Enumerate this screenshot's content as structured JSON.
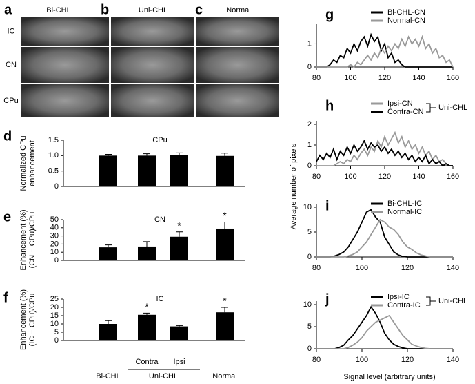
{
  "images": {
    "panel_letters": [
      "a",
      "b",
      "c"
    ],
    "columns": [
      "Bi-CHL",
      "Uni-CHL",
      "Normal"
    ],
    "rows": [
      "IC",
      "CN",
      "CPu"
    ]
  },
  "figure": {
    "shared_ylabel": "Average number of pixels",
    "shared_xlabel": "Signal level (arbitrary units)"
  },
  "chart_data": [
    {
      "type": "bar",
      "label": "d",
      "title": "CPu",
      "ylabel": [
        "Normalized CPu",
        "enhancement"
      ],
      "color": "#000000",
      "values": [
        1.0,
        1.0,
        1.02,
        0.99
      ],
      "errors": [
        0.04,
        0.06,
        0.07,
        0.09
      ],
      "ylim": [
        0,
        1.5
      ],
      "yticks": [
        0,
        0.5,
        {
          "value": 1,
          "label": "1.0"
        },
        1.5
      ]
    },
    {
      "type": "bar",
      "label": "e",
      "title": "CN",
      "ylabel": [
        "Enhancement (%)",
        "(CN − CPu)/CPu"
      ],
      "color": "#000000",
      "values": [
        16,
        17,
        29,
        39
      ],
      "errors": [
        3,
        6,
        6,
        8
      ],
      "annotations": [
        {
          "index": 2,
          "text": "*"
        },
        {
          "index": 3,
          "text": "*"
        }
      ],
      "ylim": [
        0,
        50
      ],
      "yticks": [
        0,
        10,
        20,
        30,
        40,
        50
      ]
    },
    {
      "type": "bar",
      "label": "f",
      "title": "IC",
      "ylabel": [
        "Enhancement (%)",
        "(IC − CPu)/CPu"
      ],
      "color": "#000000",
      "categories": [
        "Bi-CHL",
        "Contra",
        "Ipsi",
        "Normal"
      ],
      "group_label": "Uni-CHL",
      "values": [
        10,
        15.5,
        8.5,
        17
      ],
      "errors": [
        2,
        1,
        0.5,
        3
      ],
      "annotations": [
        {
          "index": 1,
          "text": "*"
        },
        {
          "index": 3,
          "text": "*"
        }
      ],
      "ylim": [
        0,
        25
      ],
      "yticks": [
        0,
        5,
        10,
        15,
        20,
        25
      ]
    },
    {
      "type": "line",
      "label": "g",
      "xlim": [
        80,
        160
      ],
      "xticks": [
        80,
        100,
        120,
        140,
        160
      ],
      "ylim": [
        0,
        1.7
      ],
      "yticks": [
        0,
        1
      ],
      "x": [
        80,
        82,
        84,
        86,
        88,
        90,
        92,
        94,
        96,
        98,
        100,
        102,
        104,
        106,
        108,
        110,
        112,
        114,
        116,
        118,
        120,
        122,
        124,
        126,
        128,
        130,
        132,
        134,
        136,
        138,
        140,
        142,
        144,
        146,
        148,
        150,
        152,
        154,
        156,
        158,
        160
      ],
      "series": [
        {
          "name": "Bi-CHL-CN",
          "color": "#000000",
          "values": [
            0,
            0,
            0,
            0,
            0.1,
            0.3,
            0.2,
            0.5,
            0.4,
            0.8,
            0.6,
            1.0,
            0.7,
            1.1,
            1.3,
            0.9,
            1.4,
            1.1,
            1.3,
            0.7,
            1.0,
            0.4,
            0.6,
            0.2,
            0.3,
            0.1,
            0,
            0,
            0,
            0,
            0,
            0,
            0,
            0,
            0,
            0,
            0,
            0,
            0,
            0,
            0
          ]
        },
        {
          "name": "Normal-CN",
          "color": "#999999",
          "values": [
            0,
            0,
            0,
            0,
            0,
            0,
            0,
            0,
            0,
            0,
            0.1,
            0,
            0.2,
            0.1,
            0.3,
            0.5,
            0.3,
            0.6,
            0.4,
            0.8,
            0.6,
            0.9,
            0.7,
            1.0,
            0.8,
            1.2,
            0.9,
            1.3,
            1.0,
            1.2,
            0.9,
            1.3,
            0.8,
            1.0,
            0.6,
            0.8,
            0.4,
            0.5,
            0.2,
            0.3,
            0
          ]
        }
      ]
    },
    {
      "type": "line",
      "label": "h",
      "legend_group": "Uni-CHL",
      "xlim": [
        80,
        160
      ],
      "xticks": [
        80,
        100,
        120,
        140,
        160
      ],
      "ylim": [
        0,
        2
      ],
      "yticks": [
        0,
        1,
        2
      ],
      "x": [
        80,
        82,
        84,
        86,
        88,
        90,
        92,
        94,
        96,
        98,
        100,
        102,
        104,
        106,
        108,
        110,
        112,
        114,
        116,
        118,
        120,
        122,
        124,
        126,
        128,
        130,
        132,
        134,
        136,
        138,
        140,
        142,
        144,
        146,
        148,
        150,
        152,
        154,
        156,
        158,
        160
      ],
      "series": [
        {
          "name": "Ipsi-CN",
          "color": "#999999",
          "values": [
            0,
            0,
            0,
            0,
            0,
            0,
            0.1,
            0.2,
            0.1,
            0.3,
            0.2,
            0.5,
            0.3,
            0.6,
            0.8,
            0.5,
            0.9,
            0.7,
            1.2,
            0.9,
            1.4,
            1.0,
            1.3,
            1.6,
            1.1,
            1.4,
            0.9,
            1.2,
            0.8,
            1.0,
            0.6,
            0.9,
            0.5,
            0.7,
            0.3,
            0.5,
            0.2,
            0.3,
            0.1,
            0,
            0
          ]
        },
        {
          "name": "Contra-CN",
          "color": "#000000",
          "values": [
            0.2,
            0.5,
            0.3,
            0.6,
            0.4,
            0.8,
            0.3,
            0.7,
            0.5,
            0.9,
            0.6,
            1.0,
            0.7,
            0.9,
            1.2,
            0.8,
            1.1,
            0.9,
            1.0,
            0.7,
            0.9,
            0.6,
            0.8,
            0.5,
            0.7,
            0.4,
            0.6,
            0.3,
            0.5,
            0.2,
            0.4,
            0.2,
            0.5,
            0.1,
            0.3,
            0.1,
            0.2,
            0,
            0.1,
            0,
            0
          ]
        }
      ]
    },
    {
      "type": "line",
      "label": "i",
      "xlim": [
        80,
        140
      ],
      "xticks": [
        80,
        100,
        120,
        140
      ],
      "ylim": [
        0,
        10
      ],
      "yticks": [
        0,
        5,
        10
      ],
      "x": [
        80,
        82,
        84,
        86,
        88,
        90,
        92,
        94,
        96,
        98,
        100,
        102,
        104,
        106,
        108,
        110,
        112,
        114,
        116,
        118,
        120,
        122,
        124,
        126,
        128,
        130,
        132,
        134,
        136,
        138,
        140
      ],
      "series": [
        {
          "name": "Bi-CHL-IC",
          "color": "#000000",
          "values": [
            0,
            0,
            0,
            0,
            0.2,
            0.5,
            1,
            2,
            3.5,
            5,
            7,
            9,
            9.5,
            8,
            7,
            4,
            2.5,
            1,
            0.4,
            0.1,
            0,
            0,
            0,
            0,
            0,
            0,
            0,
            0,
            0,
            0,
            0
          ]
        },
        {
          "name": "Normal-IC",
          "color": "#999999",
          "values": [
            0,
            0,
            0,
            0,
            0,
            0,
            0,
            0.2,
            0.5,
            1,
            2,
            3,
            4.5,
            6,
            7.5,
            7,
            6,
            5.5,
            4.5,
            3,
            2,
            1.5,
            0.8,
            0.4,
            0.2,
            0,
            0,
            0,
            0,
            0,
            0
          ]
        }
      ]
    },
    {
      "type": "line",
      "label": "j",
      "legend_group": "Uni-CHL",
      "xlim": [
        80,
        140
      ],
      "xticks": [
        80,
        100,
        120,
        140
      ],
      "ylim": [
        0,
        10
      ],
      "yticks": [
        0,
        5,
        10
      ],
      "x": [
        80,
        82,
        84,
        86,
        88,
        90,
        92,
        94,
        96,
        98,
        100,
        102,
        104,
        106,
        108,
        110,
        112,
        114,
        116,
        118,
        120,
        122,
        124,
        126,
        128,
        130,
        132,
        134,
        136,
        138,
        140
      ],
      "series": [
        {
          "name": "Ipsi-IC",
          "color": "#000000",
          "values": [
            0,
            0,
            0,
            0,
            0,
            0.3,
            0.8,
            2,
            3,
            4.5,
            6,
            7.5,
            9.5,
            8,
            6,
            3.5,
            2,
            1,
            0.5,
            0.2,
            0,
            0,
            0,
            0,
            0,
            0,
            0,
            0,
            0,
            0,
            0
          ]
        },
        {
          "name": "Contra-IC",
          "color": "#999999",
          "values": [
            0,
            0,
            0,
            0,
            0,
            0,
            0,
            0.3,
            0.8,
            1.5,
            2.5,
            4,
            5,
            6,
            6.5,
            7,
            7.5,
            6,
            4.5,
            3,
            2,
            1,
            0.6,
            0.3,
            0.1,
            0,
            0,
            0,
            0,
            0,
            0
          ]
        }
      ]
    }
  ]
}
